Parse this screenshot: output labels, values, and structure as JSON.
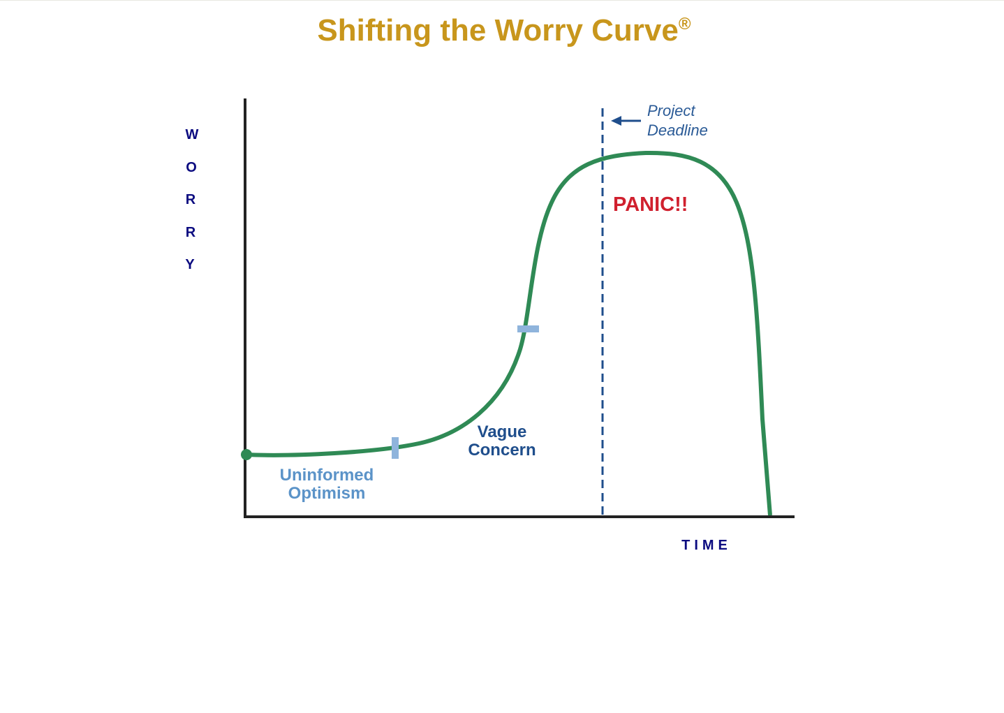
{
  "title": {
    "text": "Shifting the Worry Curve",
    "mark": "®"
  },
  "y_axis_label": [
    "W",
    "O",
    "R",
    "R",
    "Y"
  ],
  "x_axis_label": "TIME",
  "annotations": {
    "deadline": [
      "Project",
      "Deadline"
    ],
    "panic": "PANIC!!",
    "vague_concern": [
      "Vague",
      "Concern"
    ],
    "uninformed_optimism": [
      "Uninformed",
      "Optimism"
    ]
  }
}
